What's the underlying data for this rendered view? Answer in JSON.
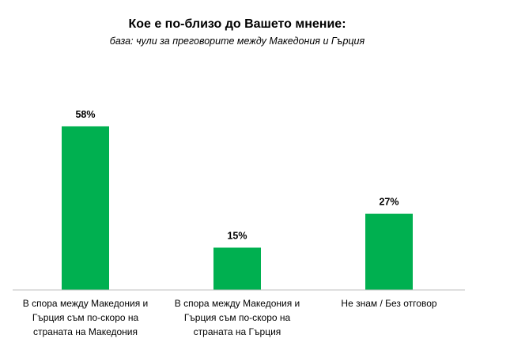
{
  "chart_data": {
    "type": "bar",
    "title": "Кое е по-близо до Вашето мнение:",
    "subtitle": "база: чули за преговорите между Македония и Гърция",
    "categories": [
      [
        "В спора между Македония и",
        "Гърция съм по-скоро  на",
        "страната на Македония"
      ],
      [
        "В спора между Македония и",
        "Гърция съм по-скоро на",
        "страната на Гърция"
      ],
      [
        "Не знам / Без отговор"
      ]
    ],
    "values": [
      58,
      15,
      27
    ],
    "value_labels": [
      "58%",
      "15%",
      "27%"
    ],
    "unit": "%",
    "ylim": [
      0,
      60
    ],
    "xlabel": "",
    "ylabel": "",
    "grid": false,
    "legend": "none",
    "colors": {
      "bar": "#00b050",
      "axis": "#bfbfbf",
      "text": "#000000"
    }
  }
}
